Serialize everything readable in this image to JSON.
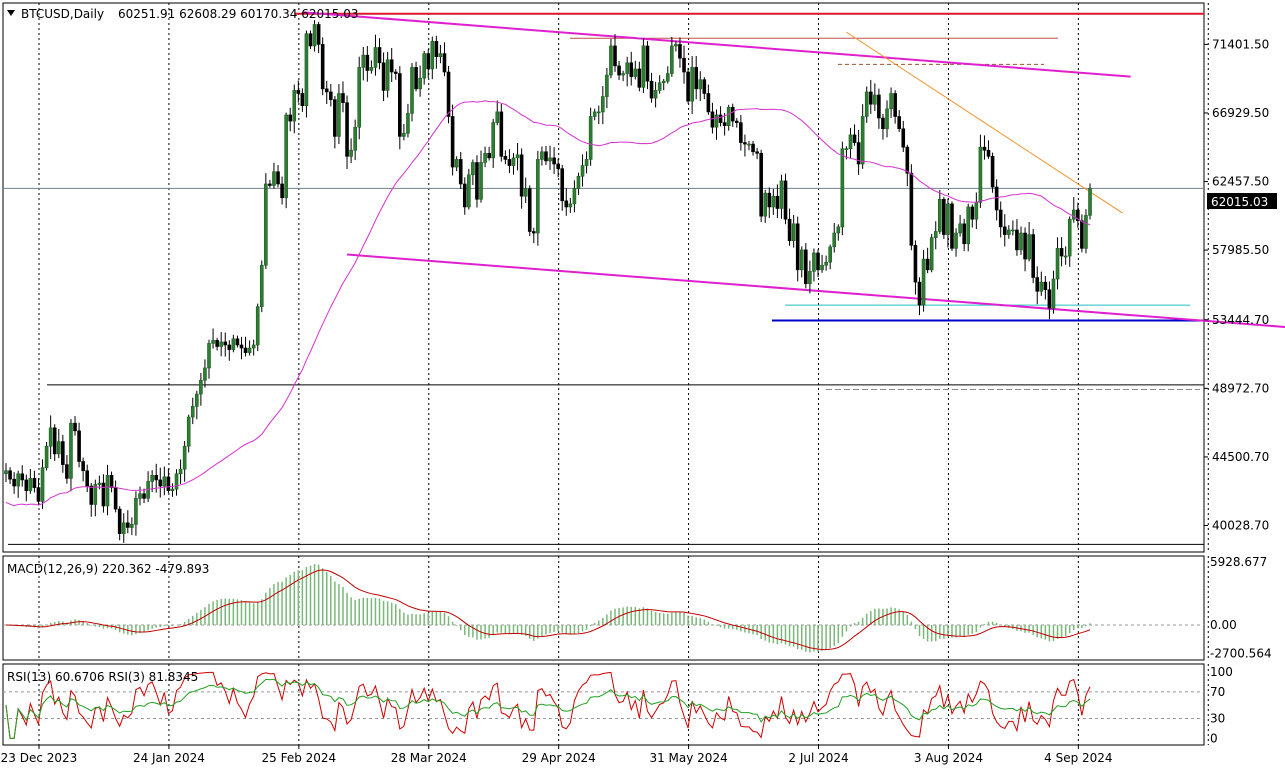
{
  "header": {
    "symbol": "BTCUSD,Daily",
    "ohlc": "60251.91 62608.29 60170.34 62015.03"
  },
  "macd_header": "MACD(12,26,9) 220.362 -479.893",
  "rsi_header": "RSI(13) 60.6706  RSI(3) 81.8345",
  "colors": {
    "bull": "#1b5e20",
    "bear": "#000000",
    "ma": "#d631d0",
    "channel": "#e01fd0",
    "red_line": "#e0162e",
    "support": "#0000c8",
    "cyan": "#20c0c0",
    "orange": "#f0922a",
    "macd_hist": "#7ab87a",
    "macd_signal": "#c00000",
    "rsi_fast": "#d00000",
    "rsi_slow": "#20a020"
  },
  "chart_data": [
    {
      "type": "candlestick",
      "symbol": "BTCUSD",
      "timeframe": "Daily",
      "last_close": 62015.03,
      "last_price_label": "62015.03",
      "y_ticks": [
        "71401.50",
        "66929.50",
        "62457.50",
        "57985.50",
        "53444.70",
        "48972.70",
        "44500.70",
        "40028.70"
      ],
      "ylim": [
        38300,
        74100
      ],
      "x_labels": [
        "23 Dec 2023",
        "24 Jan 2024",
        "25 Feb 2024",
        "28 Mar 2024",
        "29 Apr 2024",
        "31 May 2024",
        "2 Jul 2024",
        "3 Aug 2024",
        "4 Sep 2024"
      ],
      "x_label_bars": [
        0,
        32,
        64,
        96,
        128,
        160,
        192,
        224,
        256
      ],
      "bar_count": 267,
      "closes": [
        43600,
        43050,
        42600,
        43400,
        43000,
        42300,
        43100,
        42500,
        41600,
        43800,
        45200,
        46400,
        44700,
        45500,
        44000,
        43100,
        46700,
        46200,
        44200,
        43600,
        42600,
        41400,
        42700,
        42800,
        41300,
        43300,
        42500,
        41100,
        39500,
        40200,
        39900,
        40100,
        41800,
        42100,
        41800,
        42900,
        43300,
        43000,
        42600,
        43200,
        42300,
        42400,
        43400,
        43700,
        45200,
        47100,
        47800,
        48600,
        49500,
        50300,
        51900,
        52100,
        51700,
        52000,
        51800,
        51500,
        52200,
        51800,
        51600,
        51300,
        51600,
        51800,
        54300,
        57000,
        62300,
        62200,
        63100,
        62300,
        61400,
        66800,
        66400,
        68400,
        68200,
        67400,
        72100,
        71300,
        72700,
        71400,
        68500,
        68300,
        67800,
        65400,
        68200,
        67600,
        64100,
        64500,
        66000,
        69900,
        70700,
        69700,
        69900,
        71200,
        70200,
        68400,
        70400,
        69600,
        69500,
        65400,
        65600,
        66900,
        69900,
        68500,
        69200,
        70800,
        69800,
        71600,
        70600,
        70800,
        69600,
        66700,
        63400,
        63900,
        62300,
        60800,
        62900,
        63700,
        61300,
        63700,
        64300,
        64000,
        66300,
        67000,
        64100,
        63900,
        63500,
        64000,
        64200,
        61500,
        62000,
        59200,
        59100,
        63900,
        64400,
        63800,
        64000,
        63600,
        63300,
        61200,
        60800,
        61000,
        62000,
        62800,
        63500,
        63900,
        66700,
        67000,
        67000,
        68000,
        69400,
        71300,
        70000,
        69400,
        69500,
        70200,
        69300,
        69800,
        68600,
        71300,
        69000,
        67900,
        68400,
        68900,
        69000,
        69500,
        71300,
        71400,
        70500,
        69600,
        67700,
        69900,
        68500,
        69100,
        68200,
        67000,
        66000,
        66800,
        66300,
        66100,
        67300,
        66400,
        66300,
        65000,
        64900,
        64900,
        64400,
        64300,
        60200,
        61700,
        60800,
        61500,
        60700,
        62500,
        60000,
        58600,
        59700,
        56700,
        58000,
        55800,
        56600,
        57800,
        56700,
        57000,
        57200,
        58200,
        59100,
        59500,
        64600,
        64600,
        65500,
        65000,
        63600,
        66700,
        68300,
        67500,
        68100,
        66600,
        65900,
        67200,
        68200,
        66700,
        65900,
        64700,
        63000,
        58300,
        55900,
        54400,
        57400,
        56700,
        58800,
        59200,
        61300,
        59000,
        61000,
        58100,
        59100,
        59700,
        58400,
        60800,
        60000,
        61100,
        64700,
        64500,
        64100,
        62100,
        60600,
        59500,
        59000,
        59300,
        59300,
        58000,
        59100,
        57400,
        59000,
        56200,
        55300,
        55900,
        55400,
        54200,
        56100,
        58100,
        57600,
        57600,
        60000,
        60600,
        59900,
        58100,
        60250,
        62015
      ],
      "moving_average": "pink line",
      "horizontal_lines": [
        {
          "label": "resistance-top",
          "value": 73400
        },
        {
          "label": "resistance-mid",
          "value": 71800
        },
        {
          "label": "dashed-mid",
          "value": 70100
        },
        {
          "label": "support",
          "value": 53400
        },
        {
          "label": "cyan-support",
          "value": 54400
        },
        {
          "label": "swing-low",
          "value": 49200
        },
        {
          "label": "dashed-low",
          "value": 48900
        },
        {
          "label": "base-low",
          "value": 38800
        }
      ],
      "trendlines": [
        {
          "label": "channel-upper",
          "x": [
            73,
            277
          ],
          "y": [
            73500,
            69300
          ]
        },
        {
          "label": "channel-lower",
          "x": [
            84,
            290
          ],
          "y": [
            57700,
            53300
          ]
        },
        {
          "label": "orange-trend",
          "x": [
            207,
            275
          ],
          "y": [
            72200,
            60400
          ]
        }
      ]
    },
    {
      "type": "histogram-line",
      "name": "MACD(12,26,9)",
      "values_text": "220.362 -479.893",
      "y_ticks": [
        "5928.677",
        "0.00",
        "-2700.564"
      ],
      "ylim": [
        -3300,
        6500
      ],
      "main": 220.362,
      "signal": -479.893
    },
    {
      "type": "line",
      "name": "RSI",
      "series": [
        {
          "name": "RSI(13)",
          "value": 60.6706
        },
        {
          "name": "RSI(3)",
          "value": 81.8345
        }
      ],
      "y_ticks": [
        "100",
        "70",
        "30",
        "0"
      ],
      "ylim": [
        -10,
        112
      ]
    }
  ]
}
